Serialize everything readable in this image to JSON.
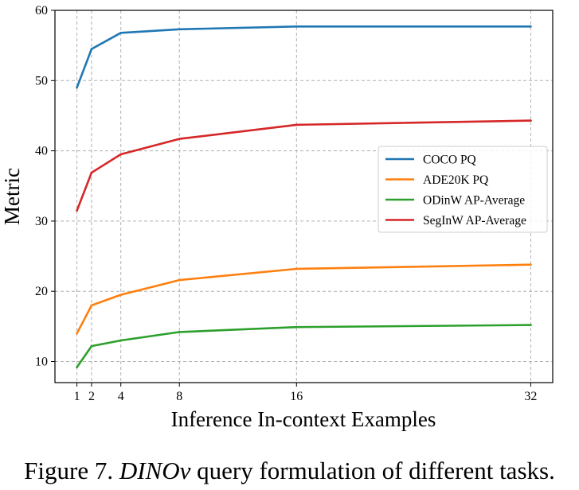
{
  "chart_data": {
    "type": "line",
    "title": "",
    "xlabel": "Inference In-context Examples",
    "ylabel": "Metric",
    "x": [
      1,
      2,
      4,
      8,
      16,
      32
    ],
    "x_ticks": [
      "1",
      "2",
      "4",
      "8",
      "16",
      "32"
    ],
    "xlim": [
      -0.5,
      33.5
    ],
    "ylim": [
      7,
      60
    ],
    "y_ticks": [
      10,
      20,
      30,
      40,
      50,
      60
    ],
    "grid": true,
    "legend_position": "center-right",
    "series": [
      {
        "name": "COCO PQ",
        "color": "#1f77b4",
        "values": [
          49.0,
          54.5,
          56.8,
          57.3,
          57.7,
          57.7
        ]
      },
      {
        "name": "ADE20K PQ",
        "color": "#ff7f0e",
        "values": [
          14.0,
          18.0,
          19.5,
          21.6,
          23.2,
          23.8
        ]
      },
      {
        "name": "ODinW AP-Average",
        "color": "#2ca02c",
        "values": [
          9.2,
          12.2,
          13.0,
          14.2,
          14.9,
          15.2
        ]
      },
      {
        "name": "SegInW AP-Average",
        "color": "#d62728",
        "values": [
          31.5,
          36.9,
          39.5,
          41.7,
          43.7,
          44.3
        ]
      }
    ]
  },
  "caption": {
    "prefix": "Figure 7. ",
    "emphasis": "DINOv",
    "suffix": " query formulation of different tasks."
  }
}
